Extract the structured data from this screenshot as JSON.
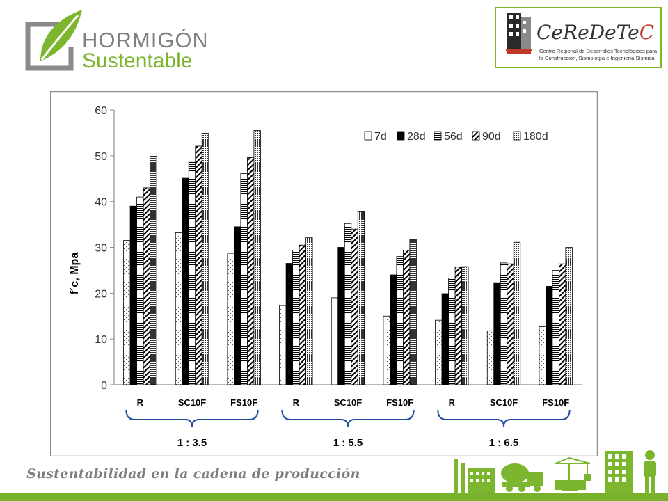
{
  "logo_left": {
    "line1": "HORMIGÓN",
    "line2": "Sustentable"
  },
  "logo_right": {
    "title_a": "CeReDeTe",
    "title_b": "C",
    "subtitle1": "Centro Regional de Desarrollos Tecnológicos para",
    "subtitle2": "la Construcción, Sismología e Ingeniería Sísmica"
  },
  "footer": {
    "tagline": "Sustentabilidad en la cadena de producción"
  },
  "icons": [
    "factory-icon",
    "cement-mixer-truck-icon",
    "crane-icon",
    "building-icon",
    "person-icon"
  ],
  "chart_data": {
    "type": "bar",
    "ylabel": "f´c, Mpa",
    "ylim": [
      0,
      60
    ],
    "yticks": [
      0,
      10,
      20,
      30,
      40,
      50,
      60
    ],
    "legend_position": "top-right",
    "grid": false,
    "categories": [
      "R",
      "SC10F",
      "FS10F",
      "R",
      "SC10F",
      "FS10F",
      "R",
      "SC10F",
      "FS10F"
    ],
    "groups": [
      {
        "label": "1 : 3.5",
        "members": [
          0,
          1,
          2
        ]
      },
      {
        "label": "1 : 5.5",
        "members": [
          3,
          4,
          5
        ]
      },
      {
        "label": "1 : 6.5",
        "members": [
          6,
          7,
          8
        ]
      }
    ],
    "series": [
      {
        "name": "7d",
        "values": [
          31.5,
          33.2,
          28.7,
          17.3,
          19.0,
          15.0,
          14.1,
          11.8,
          12.7
        ]
      },
      {
        "name": "28d",
        "values": [
          39.0,
          45.1,
          34.5,
          26.5,
          30.0,
          24.0,
          19.9,
          22.3,
          21.5
        ]
      },
      {
        "name": "56d",
        "values": [
          41.0,
          48.8,
          46.1,
          29.4,
          35.2,
          28.0,
          23.3,
          26.6,
          25.0
        ]
      },
      {
        "name": "90d",
        "values": [
          43.0,
          52.1,
          49.6,
          30.5,
          34.0,
          29.4,
          25.7,
          26.4,
          26.4
        ]
      },
      {
        "name": "180d",
        "values": [
          49.9,
          54.9,
          55.5,
          32.1,
          37.9,
          31.8,
          25.8,
          31.1,
          30.0
        ]
      }
    ]
  }
}
